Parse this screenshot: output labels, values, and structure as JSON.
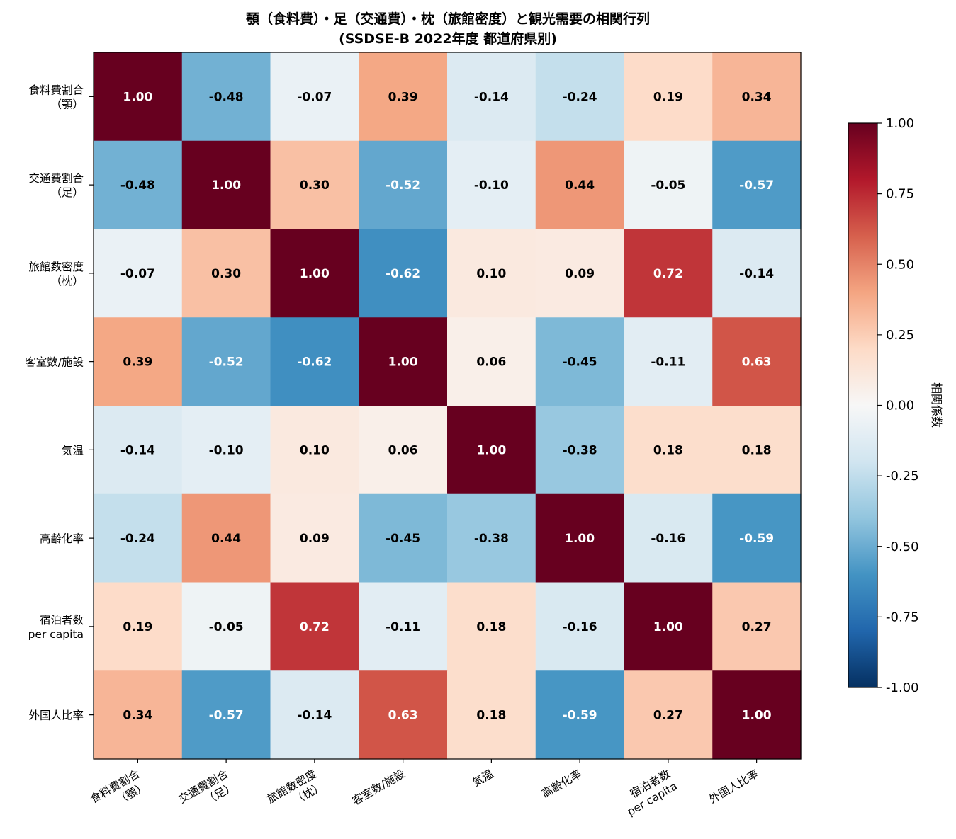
{
  "chart_data": {
    "type": "heatmap",
    "title": "顎（食料費）・足（交通費）・枕（旅館密度）と観光需要の相関行列",
    "subtitle": "(SSDSE-B 2022年度 都道府県別)",
    "row_labels": [
      [
        "食料費割合",
        "（顎）"
      ],
      [
        "交通費割合",
        "（足）"
      ],
      [
        "旅館数密度",
        "（枕）"
      ],
      [
        "客室数/施設"
      ],
      [
        "気温"
      ],
      [
        "高齢化率"
      ],
      [
        "宿泊者数",
        "per capita"
      ],
      [
        "外国人比率"
      ]
    ],
    "col_labels": [
      [
        "食料費割合",
        "（顎）"
      ],
      [
        "交通費割合",
        "（足）"
      ],
      [
        "旅館数密度",
        "（枕）"
      ],
      [
        "客室数/施設"
      ],
      [
        "気温"
      ],
      [
        "高齢化率"
      ],
      [
        "宿泊者数",
        "per capita"
      ],
      [
        "外国人比率"
      ]
    ],
    "values": [
      [
        1.0,
        -0.48,
        -0.07,
        0.39,
        -0.14,
        -0.24,
        0.19,
        0.34
      ],
      [
        -0.48,
        1.0,
        0.3,
        -0.52,
        -0.1,
        0.44,
        -0.05,
        -0.57
      ],
      [
        -0.07,
        0.3,
        1.0,
        -0.62,
        0.1,
        0.09,
        0.72,
        -0.14
      ],
      [
        0.39,
        -0.52,
        -0.62,
        1.0,
        0.06,
        -0.45,
        -0.11,
        0.63
      ],
      [
        -0.14,
        -0.1,
        0.1,
        0.06,
        1.0,
        -0.38,
        0.18,
        0.18
      ],
      [
        -0.24,
        0.44,
        0.09,
        -0.45,
        -0.38,
        1.0,
        -0.16,
        -0.59
      ],
      [
        0.19,
        -0.05,
        0.72,
        -0.11,
        0.18,
        -0.16,
        1.0,
        0.27
      ],
      [
        0.34,
        -0.57,
        -0.14,
        0.63,
        0.18,
        -0.59,
        0.27,
        1.0
      ]
    ],
    "colormap": "RdBu_r",
    "vmin": -1.0,
    "vmax": 1.0,
    "colorbar": {
      "label": "相関係数",
      "ticks": [
        "1.00",
        "0.75",
        "0.50",
        "0.25",
        "0.00",
        "-0.25",
        "-0.50",
        "-0.75",
        "-1.00"
      ],
      "tick_values": [
        1.0,
        0.75,
        0.5,
        0.25,
        0.0,
        -0.25,
        -0.5,
        -0.75,
        -1.0
      ],
      "placement": "right"
    }
  }
}
